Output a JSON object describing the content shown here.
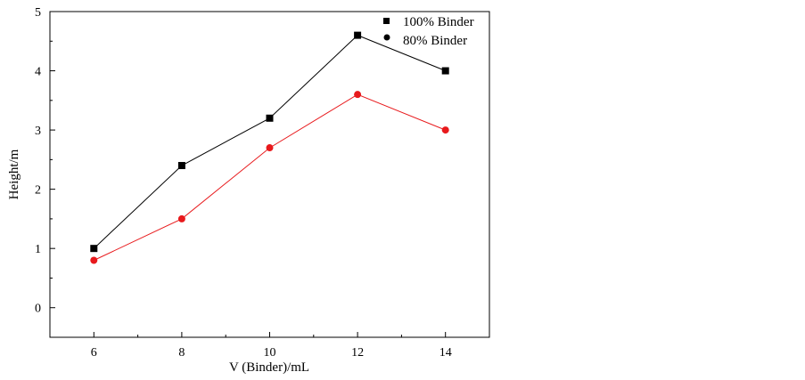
{
  "chart_data": {
    "type": "line",
    "xlabel": "V (Binder)/mL",
    "ylabel": "Height/m",
    "x": [
      6,
      8,
      10,
      12,
      14
    ],
    "xticks": [
      6,
      8,
      10,
      12,
      14
    ],
    "yticks": [
      0,
      1,
      2,
      3,
      4,
      5
    ],
    "xlim": [
      5,
      15
    ],
    "ylim": [
      -0.5,
      5
    ],
    "grid": false,
    "legend_position": "top-right",
    "series": [
      {
        "name": "100% Binder",
        "values": [
          1.0,
          2.4,
          3.2,
          4.6,
          4.0
        ],
        "color": "#000000",
        "marker": "square"
      },
      {
        "name": "80% Binder",
        "values": [
          0.8,
          1.5,
          2.7,
          3.6,
          3.0
        ],
        "color": "#e8191c",
        "marker": "circle"
      }
    ]
  }
}
